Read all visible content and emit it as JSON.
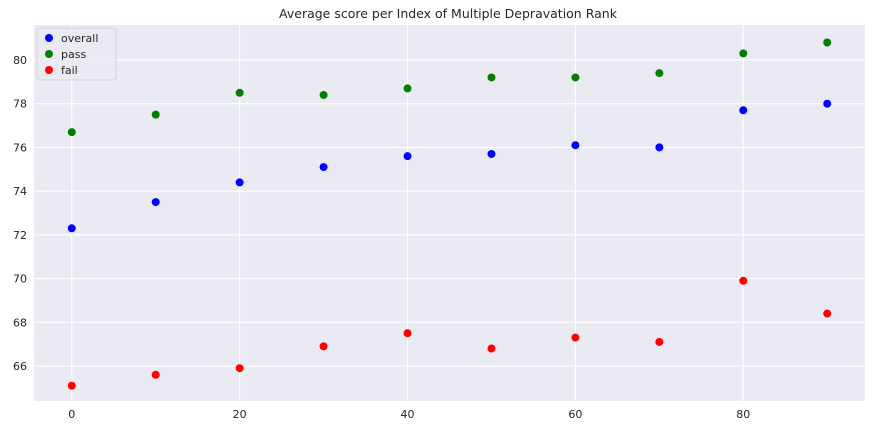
{
  "chart_data": {
    "type": "scatter",
    "title": "Average score per Index of Multiple Depravation Rank",
    "xlabel": "",
    "ylabel": "",
    "x": [
      0,
      10,
      20,
      30,
      40,
      50,
      60,
      70,
      80,
      90
    ],
    "xlim": [
      -4.5,
      94.5
    ],
    "ylim": [
      64.4,
      81.6
    ],
    "xticks": [
      0,
      20,
      40,
      60,
      80
    ],
    "yticks": [
      66,
      68,
      70,
      72,
      74,
      76,
      78,
      80
    ],
    "grid": true,
    "legend_position": "top-left",
    "series": [
      {
        "name": "overall",
        "color": "#0000ff",
        "values": [
          72.3,
          73.5,
          74.4,
          75.1,
          75.6,
          75.7,
          76.1,
          76.0,
          77.7,
          78.0
        ]
      },
      {
        "name": "pass",
        "color": "#008000",
        "values": [
          76.7,
          77.5,
          78.5,
          78.4,
          78.7,
          79.2,
          79.2,
          79.4,
          80.3,
          80.8
        ]
      },
      {
        "name": "fail",
        "color": "#ff0000",
        "values": [
          65.1,
          65.6,
          65.9,
          66.9,
          67.5,
          66.8,
          67.3,
          67.1,
          69.9,
          68.4
        ]
      }
    ]
  }
}
